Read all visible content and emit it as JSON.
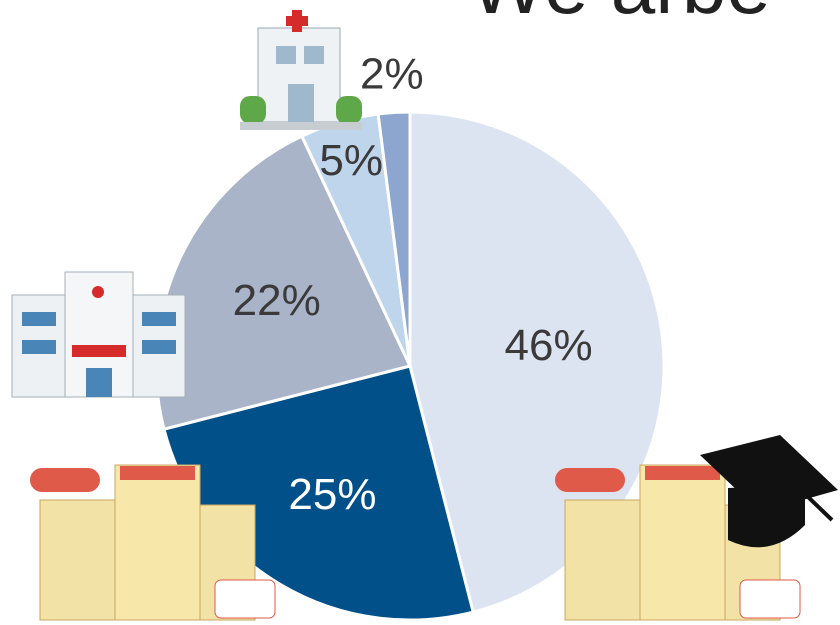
{
  "chart_data": {
    "type": "pie",
    "title": "We arbe",
    "values": [
      46,
      25,
      22,
      5,
      2
    ],
    "value_labels": [
      "46%",
      "25%",
      "22%",
      "5%",
      "2%"
    ],
    "colors": [
      "#dde4f1",
      "#02508a",
      "#aab4c8",
      "#bed5ec",
      "#8da6d0"
    ]
  }
}
